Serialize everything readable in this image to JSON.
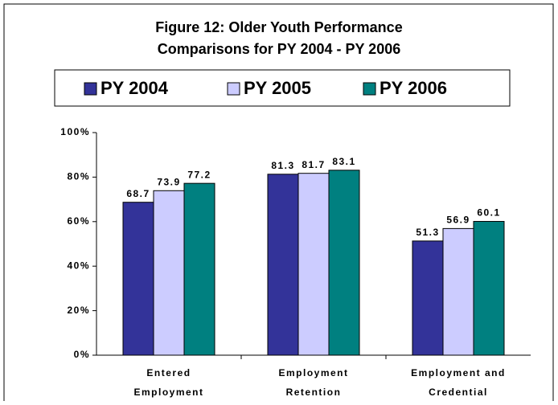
{
  "chart_data": {
    "type": "bar",
    "title": [
      "Figure 12: Older Youth Performance",
      "Comparisons for PY 2004 - PY 2006"
    ],
    "categories": [
      "Entered Employment",
      "Employment Retention",
      "Employment and Credential"
    ],
    "series": [
      {
        "name": "PY 2004",
        "color": "#333399",
        "values": [
          68.7,
          81.3,
          51.3
        ]
      },
      {
        "name": "PY 2005",
        "color": "#ccccff",
        "values": [
          73.9,
          81.7,
          56.9
        ]
      },
      {
        "name": "PY 2006",
        "color": "#008080",
        "values": [
          77.2,
          83.1,
          60.1
        ]
      }
    ],
    "ylim": [
      0,
      100
    ],
    "yticks": [
      {
        "value": 0,
        "label": "0%"
      },
      {
        "value": 20,
        "label": "20%"
      },
      {
        "value": 40,
        "label": "40%"
      },
      {
        "value": 60,
        "label": "60%"
      },
      {
        "value": 80,
        "label": "80%"
      },
      {
        "value": 100,
        "label": "100%"
      }
    ],
    "legend": "top"
  }
}
